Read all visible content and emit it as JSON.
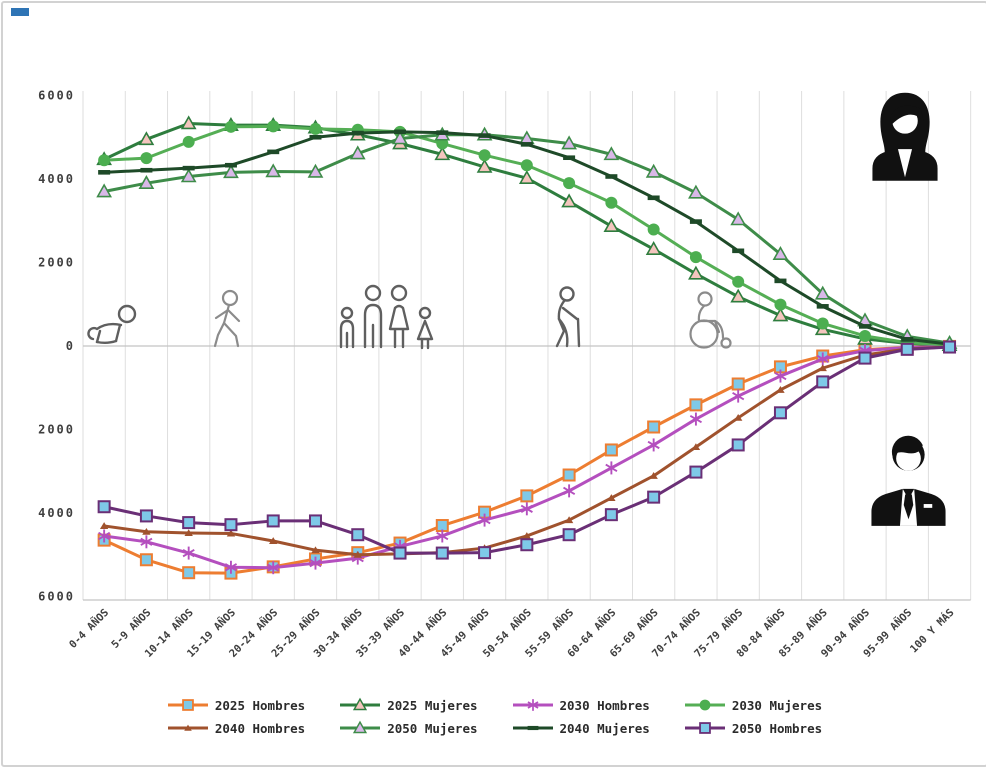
{
  "window": {
    "accent_color": "#2e74b5",
    "background": "#ffffff",
    "border_color": "#d2d2d2"
  },
  "icons": {
    "top_right": "businesswoman-icon",
    "bottom_right": "businessman-icon",
    "life_stages": [
      "crawling-baby-icon",
      "walking-child-icon",
      "family-icon",
      "elderly-cane-icon",
      "wheelchair-icon"
    ]
  },
  "chart_data": {
    "type": "line",
    "title": "",
    "xlabel": "",
    "ylabel": "",
    "ylim": [
      -6000,
      6000
    ],
    "grid": "vertical-only",
    "legend_position": "bottom",
    "y_ticks": [
      {
        "label": "6000",
        "value": 6000
      },
      {
        "label": "4000",
        "value": 4000
      },
      {
        "label": "2000",
        "value": 2000
      },
      {
        "label": "0",
        "value": 0
      },
      {
        "label": "2000",
        "value": -2000
      },
      {
        "label": "4000",
        "value": -4000
      },
      {
        "label": "6000",
        "value": -6000
      }
    ],
    "categories": [
      "0-4 AÑOS",
      "5-9 AÑOS",
      "10-14 AÑOS",
      "15-19 AÑOS",
      "20-24 AÑOS",
      "25-29 AÑOS",
      "30-34 AÑOS",
      "35-39 AÑOS",
      "40-44 AÑOS",
      "45-49 AÑOS",
      "50-54 AÑOS",
      "55-59 AÑOS",
      "60-64 AÑOS",
      "65-69 AÑOS",
      "70-74 AÑOS",
      "75-79 AÑOS",
      "80-84 AÑOS",
      "85-89 AÑOS",
      "90-94 AÑOS",
      "95-99 AÑOS",
      "100 Y MÁS"
    ],
    "series": [
      {
        "name": "2025 Hombres",
        "side": "hombres",
        "color": "#ED7D31",
        "marker": "square",
        "marker_fill": "#7EC9E8",
        "values": [
          4650,
          5120,
          5430,
          5440,
          5290,
          5100,
          4950,
          4720,
          4300,
          3980,
          3590,
          3090,
          2490,
          1940,
          1410,
          910,
          500,
          240,
          90,
          30,
          10
        ]
      },
      {
        "name": "2025 Mujeres",
        "side": "mujeres",
        "color": "#2E7D3E",
        "marker": "triangle",
        "marker_fill": "#F4C5BE",
        "values": [
          4470,
          4950,
          5330,
          5290,
          5290,
          5230,
          5060,
          4850,
          4590,
          4290,
          4020,
          3460,
          2870,
          2320,
          1730,
          1180,
          730,
          400,
          170,
          60,
          20
        ]
      },
      {
        "name": "2030 Hombres",
        "side": "hombres",
        "color": "#B44FBE",
        "marker": "star",
        "marker_fill": "#B44FBE",
        "values": [
          4550,
          4690,
          4960,
          5300,
          5310,
          5200,
          5080,
          4800,
          4550,
          4170,
          3900,
          3470,
          2920,
          2370,
          1750,
          1200,
          720,
          310,
          110,
          35,
          12
        ]
      },
      {
        "name": "2030 Mujeres",
        "side": "mujeres",
        "color": "#55AE55",
        "marker": "circle",
        "marker_fill": "#4CAE50",
        "values": [
          4450,
          4500,
          4890,
          5250,
          5260,
          5200,
          5180,
          5130,
          4850,
          4570,
          4330,
          3900,
          3430,
          2790,
          2130,
          1540,
          990,
          540,
          240,
          80,
          25
        ]
      },
      {
        "name": "2040 Hombres",
        "side": "hombres",
        "color": "#A0522D",
        "marker": "tri-small",
        "marker_fill": "#A0522D",
        "values": [
          4310,
          4450,
          4480,
          4490,
          4670,
          4890,
          5000,
          4980,
          4950,
          4840,
          4550,
          4170,
          3640,
          3110,
          2420,
          1720,
          1050,
          530,
          215,
          70,
          20
        ]
      },
      {
        "name": "2050 Mujeres",
        "side": "mujeres",
        "color": "#3E8C49",
        "marker": "triangle",
        "marker_fill": "#D9B8E8",
        "values": [
          3700,
          3900,
          4060,
          4160,
          4180,
          4170,
          4610,
          4970,
          5060,
          5060,
          4970,
          4850,
          4590,
          4170,
          3670,
          3030,
          2200,
          1250,
          610,
          230,
          70
        ]
      },
      {
        "name": "2040 Mujeres",
        "side": "mujeres",
        "color": "#1E4A28",
        "marker": "dash",
        "marker_fill": "#1E4A28",
        "values": [
          4160,
          4210,
          4260,
          4330,
          4650,
          5000,
          5100,
          5130,
          5110,
          5040,
          4830,
          4510,
          4060,
          3550,
          2980,
          2280,
          1560,
          950,
          470,
          160,
          45
        ]
      },
      {
        "name": "2050 Hombres",
        "side": "hombres",
        "color": "#6A2F76",
        "marker": "square",
        "marker_fill": "#7EC9E8",
        "values": [
          3850,
          4070,
          4230,
          4280,
          4190,
          4190,
          4520,
          4960,
          4960,
          4950,
          4760,
          4520,
          4040,
          3620,
          3020,
          2370,
          1600,
          860,
          290,
          80,
          25
        ]
      }
    ],
    "legend_rows": [
      [
        "2025 Hombres",
        "2025 Mujeres",
        "2030 Hombres",
        "2030 Mujeres"
      ],
      [
        "2040 Hombres",
        "2050 Mujeres",
        "2040 Mujeres",
        "2050 Hombres"
      ]
    ]
  }
}
